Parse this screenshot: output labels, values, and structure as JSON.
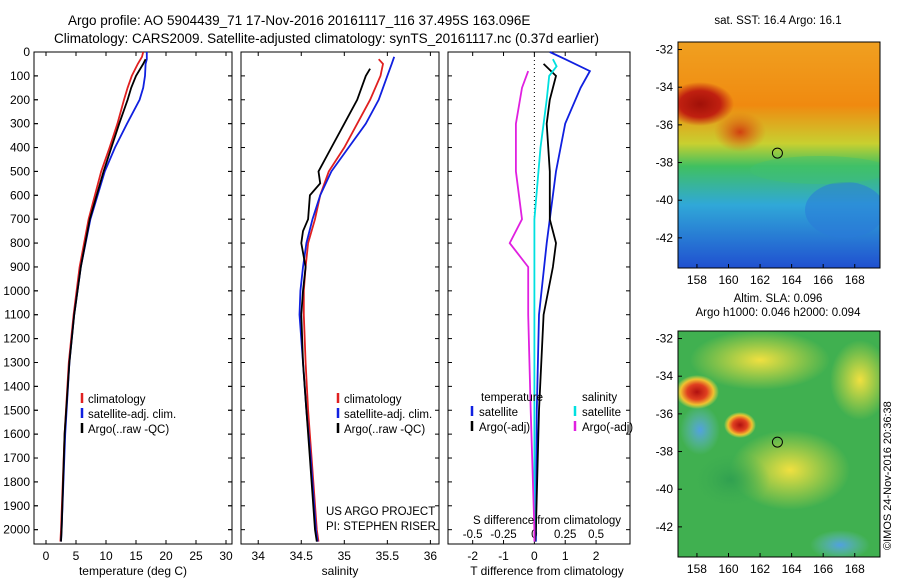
{
  "header": {
    "line1": "Argo profile: AO 5904439_71 17-Nov-2016 20161117_116 37.495S 163.096E",
    "line2": "Climatology: CARS2009. Satellite-adjusted climatology: synTS_20161117.nc (0.37d earlier)"
  },
  "colors": {
    "climatology": "#e02020",
    "satellite": "#1020e0",
    "argo": "#000000",
    "sal_satellite": "#00e0e0",
    "sal_argo": "#e020e0"
  },
  "chart_data": [
    {
      "type": "line",
      "name": "temperature",
      "xlabel": "temperature (deg C)",
      "ylabel": "",
      "xlim": [
        -2,
        31
      ],
      "ylim": [
        2060,
        0
      ],
      "xticks": [
        0,
        5,
        10,
        15,
        20,
        25,
        30
      ],
      "yticks": [
        0,
        100,
        200,
        300,
        400,
        500,
        600,
        700,
        800,
        900,
        1000,
        1100,
        1200,
        1300,
        1400,
        1500,
        1600,
        1700,
        1800,
        1900,
        2000
      ],
      "legend": {
        "placement": "lower-center",
        "labels": [
          "climatology",
          "satellite-adj. clim.",
          "Argo(..raw -QC)"
        ]
      },
      "series": [
        {
          "name": "climatology",
          "color": "#e02020",
          "depth": [
            0,
            20,
            50,
            100,
            150,
            200,
            300,
            400,
            500,
            700,
            900,
            1100,
            1300,
            1600,
            2000,
            2050
          ],
          "values": [
            16.2,
            16.0,
            15.3,
            14.3,
            13.6,
            13.0,
            11.9,
            10.6,
            9.2,
            7.1,
            5.6,
            4.6,
            3.8,
            3.1,
            2.5,
            2.4
          ]
        },
        {
          "name": "satellite-adj. clim.",
          "color": "#1020e0",
          "depth": [
            0,
            30,
            50,
            100,
            150,
            200,
            300,
            400,
            500,
            700,
            900,
            1100,
            1300,
            1600,
            2000,
            2050
          ],
          "values": [
            16.8,
            16.8,
            16.6,
            16.5,
            16.2,
            15.6,
            13.5,
            11.5,
            9.8,
            7.4,
            5.8,
            4.7,
            3.9,
            3.2,
            2.6,
            2.5
          ]
        },
        {
          "name": "Argo(..raw -QC)",
          "color": "#000000",
          "depth": [
            30,
            50,
            100,
            150,
            200,
            300,
            400,
            500,
            700,
            900,
            1100,
            1300,
            1600,
            2000,
            2050
          ],
          "values": [
            16.6,
            16.2,
            15.0,
            14.2,
            13.6,
            12.2,
            10.9,
            9.6,
            7.3,
            5.8,
            4.7,
            3.9,
            3.1,
            2.6,
            2.5
          ]
        }
      ]
    },
    {
      "type": "line",
      "name": "salinity",
      "xlabel": "salinity",
      "xlim": [
        33.8,
        36.1
      ],
      "ylim": [
        2060,
        0
      ],
      "xticks": [
        34,
        34.5,
        35,
        35.5,
        36
      ],
      "legend": {
        "placement": "lower-center",
        "labels": [
          "climatology",
          "satellite-adj. clim.",
          "Argo(..raw -QC)"
        ]
      },
      "series": [
        {
          "name": "climatology",
          "color": "#e02020",
          "depth": [
            30,
            50,
            100,
            200,
            300,
            400,
            500,
            600,
            700,
            800,
            900,
            1000,
            1100,
            1300,
            1500,
            1700,
            2000,
            2050
          ],
          "values": [
            35.4,
            35.45,
            35.42,
            35.3,
            35.15,
            35.0,
            34.82,
            34.72,
            34.66,
            34.58,
            34.55,
            34.53,
            34.53,
            34.55,
            34.58,
            34.62,
            34.68,
            34.7
          ]
        },
        {
          "name": "satellite-adj. clim.",
          "color": "#1020e0",
          "depth": [
            20,
            50,
            100,
            200,
            300,
            400,
            500,
            600,
            700,
            800,
            900,
            1000,
            1100,
            1300,
            1500,
            1700,
            2000,
            2050
          ],
          "values": [
            35.58,
            35.55,
            35.5,
            35.4,
            35.25,
            35.05,
            34.85,
            34.72,
            34.63,
            34.56,
            34.52,
            34.49,
            34.48,
            34.52,
            34.56,
            34.61,
            34.67,
            34.69
          ]
        },
        {
          "name": "Argo(..raw -QC)",
          "color": "#000000",
          "depth": [
            70,
            100,
            150,
            200,
            300,
            400,
            500,
            550,
            600,
            700,
            750,
            800,
            900,
            1000,
            1100,
            1300,
            1500,
            1700,
            2000,
            2050
          ],
          "values": [
            35.3,
            35.25,
            35.2,
            35.15,
            35.0,
            34.85,
            34.7,
            34.72,
            34.6,
            34.58,
            34.52,
            34.5,
            34.55,
            34.52,
            34.5,
            34.52,
            34.56,
            34.6,
            34.66,
            34.68
          ]
        }
      ]
    },
    {
      "type": "line",
      "name": "difference",
      "xlabel": "T difference from climatology",
      "xlabel_top": "S difference from climatology",
      "xlim": [
        -2.8,
        3.1
      ],
      "xlim_salinity": [
        -0.7,
        0.775
      ],
      "ylim": [
        2060,
        0
      ],
      "xticks": [
        -2,
        -1,
        0,
        1,
        2
      ],
      "xticks_top": [
        -0.5,
        -0.25,
        0,
        0.25,
        0.5
      ],
      "legend": {
        "placement": "lower-center",
        "temperature_title": "temperature",
        "salinity_title": "salinity",
        "labels": [
          "satellite",
          "Argo(-adj)",
          "satellite",
          "Argo(-adj)"
        ]
      },
      "series": [
        {
          "name": "T satellite",
          "color": "#1020e0",
          "depth": [
            0,
            30,
            80,
            150,
            300,
            500,
            800,
            1100,
            1500,
            2000,
            2050
          ],
          "values": [
            0.5,
            1.0,
            1.8,
            1.5,
            1.0,
            0.7,
            0.4,
            0.15,
            0.08,
            0.05,
            0.05
          ]
        },
        {
          "name": "T Argo(-adj)",
          "color": "#000000",
          "depth": [
            50,
            100,
            200,
            300,
            500,
            700,
            800,
            900,
            1100,
            1500,
            2000,
            2050
          ],
          "values": [
            0.3,
            0.7,
            0.5,
            0.4,
            0.5,
            0.5,
            0.7,
            0.6,
            0.3,
            0.15,
            0.05,
            0.02
          ]
        },
        {
          "name": "S satellite",
          "color": "#00e0e0",
          "depth": [
            30,
            60,
            100,
            200,
            400,
            700,
            1000,
            1500,
            2000,
            2050
          ],
          "values": [
            0.15,
            0.18,
            0.12,
            0.1,
            0.05,
            0.0,
            0.0,
            0.0,
            0.0,
            0.0
          ]
        },
        {
          "name": "S Argo(-adj)",
          "color": "#e020e0",
          "depth": [
            80,
            150,
            300,
            500,
            700,
            800,
            900,
            1100,
            1500,
            2000,
            2050
          ],
          "values": [
            -0.05,
            -0.1,
            -0.15,
            -0.15,
            -0.1,
            -0.2,
            -0.05,
            -0.05,
            -0.03,
            0.0,
            0.0
          ]
        }
      ]
    },
    {
      "type": "heatmap",
      "name": "sst_map",
      "title": "sat. SST: 16.4  Argo: 16.1",
      "xlim": [
        156.8,
        169.6
      ],
      "ylim": [
        -43.6,
        -31.6
      ],
      "xticks": [
        158,
        160,
        162,
        164,
        166,
        168
      ],
      "yticks": [
        -32,
        -34,
        -36,
        -38,
        -40,
        -42
      ],
      "marker": {
        "lon": 163.1,
        "lat": -37.5
      }
    },
    {
      "type": "heatmap",
      "name": "sla_map",
      "title": "Altim. SLA: 0.096",
      "subtitle": "Argo h1000: 0.046  h2000: 0.094",
      "xlim": [
        156.8,
        169.6
      ],
      "ylim": [
        -43.6,
        -31.6
      ],
      "xticks": [
        158,
        160,
        162,
        164,
        166,
        168
      ],
      "yticks": [
        -32,
        -34,
        -36,
        -38,
        -40,
        -42
      ],
      "marker": {
        "lon": 163.1,
        "lat": -37.5
      }
    }
  ],
  "annotations": {
    "project": "US ARGO PROJECT",
    "pi": "PI: STEPHEN RISER",
    "credit": "©IMOS 24-Nov-2016 20:36:38"
  }
}
